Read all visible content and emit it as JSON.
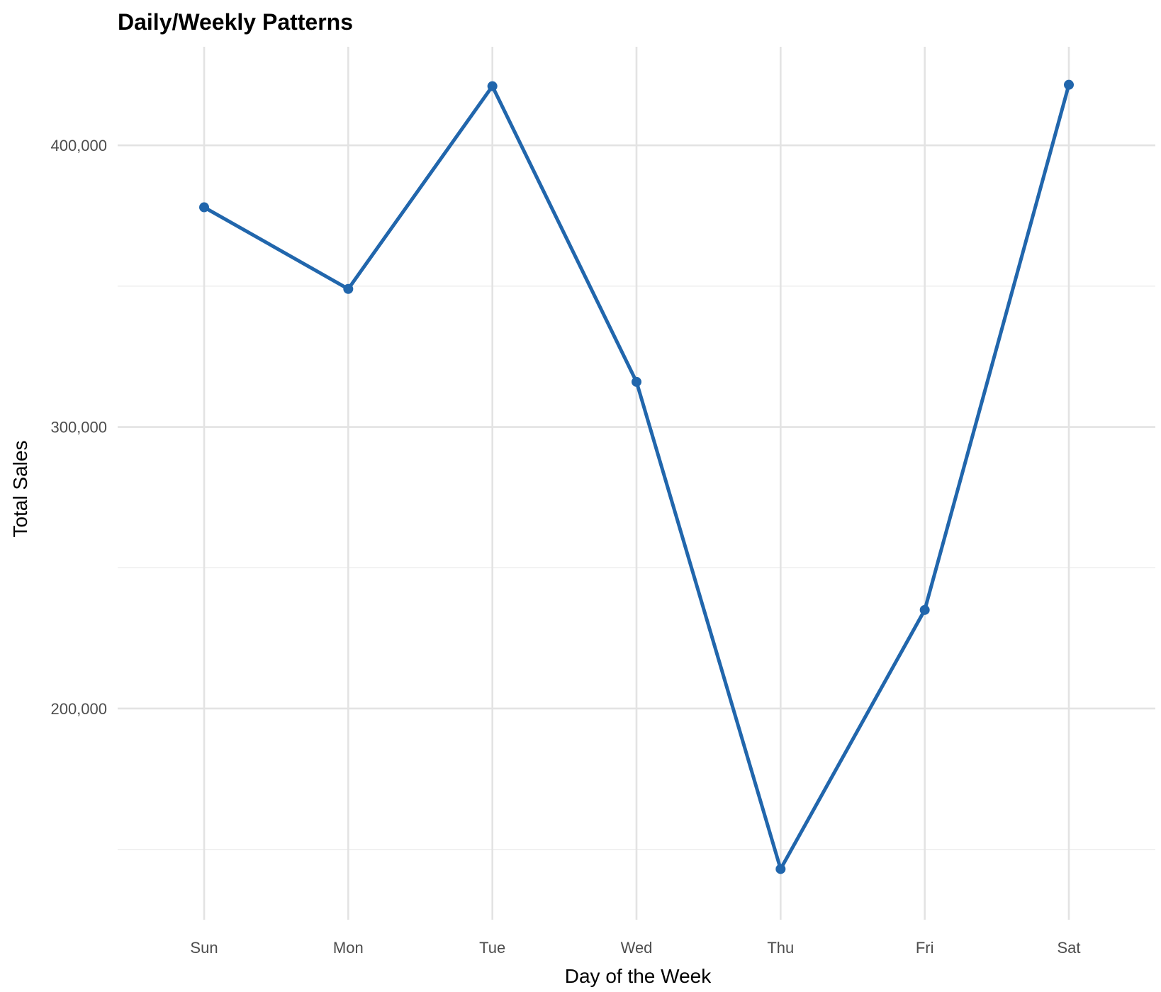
{
  "chart_data": {
    "type": "line",
    "title": "Daily/Weekly Patterns",
    "xlabel": "Day of the Week",
    "ylabel": "Total Sales",
    "categories": [
      "Sun",
      "Mon",
      "Tue",
      "Wed",
      "Thu",
      "Fri",
      "Sat"
    ],
    "series": [
      {
        "values": [
          378000,
          349000,
          421000,
          316000,
          143000,
          235000,
          421500
        ]
      }
    ],
    "y_ticks": [
      200000,
      300000,
      400000
    ],
    "y_tick_labels": [
      "200,000",
      "300,000",
      "400,000"
    ],
    "ylim": [
      125000,
      435000
    ],
    "grid": true,
    "line_color": "#2166ac"
  }
}
